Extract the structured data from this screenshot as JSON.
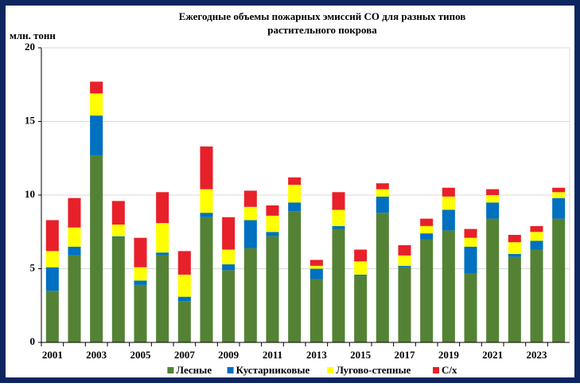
{
  "chart_data": {
    "type": "stacked_bar",
    "title": [
      "Ежегодные объемы пожарных эмиссий СО для разных типов",
      "растительного покрова"
    ],
    "y_label": "млн. тонн",
    "categories": [
      "2001",
      null,
      "2003",
      null,
      "2005",
      null,
      "2007",
      null,
      "2009",
      null,
      "2011",
      null,
      "2013",
      null,
      "2015",
      null,
      "2017",
      null,
      "2019",
      null,
      "2021",
      null,
      "2023",
      null
    ],
    "series": [
      {
        "name": "Лесные",
        "color": "#548235",
        "values": [
          3.5,
          5.9,
          12.7,
          7.1,
          3.9,
          5.9,
          2.8,
          8.5,
          4.9,
          6.4,
          7.2,
          8.9,
          4.3,
          7.7,
          4.5,
          8.8,
          5.1,
          7.0,
          7.6,
          4.7,
          8.4,
          5.8,
          6.3,
          8.4
        ]
      },
      {
        "name": "Кустарниковые",
        "color": "#0070c0",
        "values": [
          1.6,
          0.6,
          2.7,
          0.1,
          0.3,
          0.2,
          0.3,
          0.3,
          0.4,
          1.9,
          0.3,
          0.6,
          0.7,
          0.2,
          0.1,
          1.1,
          0.1,
          0.4,
          1.4,
          1.8,
          1.1,
          0.2,
          0.6,
          1.4
        ]
      },
      {
        "name": "Лугово-степные",
        "color": "#ffff00",
        "values": [
          1.1,
          1.3,
          1.5,
          0.8,
          0.9,
          2.0,
          1.5,
          1.6,
          1.0,
          0.9,
          1.1,
          1.2,
          0.2,
          1.1,
          0.9,
          0.5,
          0.7,
          0.5,
          0.9,
          0.6,
          0.5,
          0.8,
          0.6,
          0.4
        ]
      },
      {
        "name": "С/х",
        "color": "#e8202a",
        "values": [
          2.1,
          2.0,
          0.8,
          1.6,
          2.0,
          2.1,
          1.6,
          2.9,
          2.2,
          1.1,
          0.7,
          0.5,
          0.4,
          1.2,
          0.8,
          0.4,
          0.7,
          0.5,
          0.6,
          0.6,
          0.4,
          0.5,
          0.4,
          0.3
        ]
      }
    ],
    "ylim": [
      0,
      20
    ],
    "yticks": [
      0,
      5,
      10,
      15,
      20
    ],
    "grid": true,
    "legend": "bottom"
  }
}
